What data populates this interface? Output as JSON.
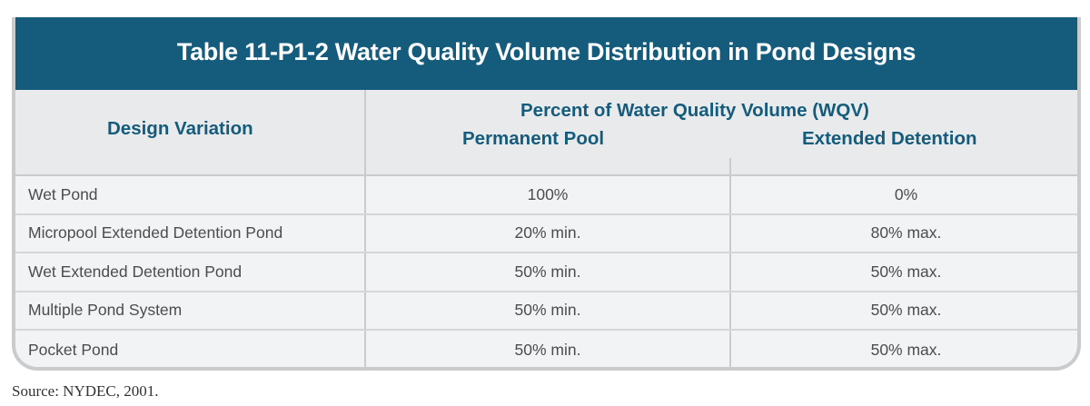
{
  "table": {
    "title": "Table 11-P1-2 Water Quality Volume Distribution in Pond Designs",
    "header": {
      "design_variation": "Design Variation",
      "percent_group": "Percent of Water Quality Volume (WQV)",
      "permanent_pool": "Permanent Pool",
      "extended_detention": "Extended Detention"
    },
    "rows": [
      {
        "design": "Wet Pond",
        "permanent_pool": "100%",
        "extended_detention": "0%"
      },
      {
        "design": "Micropool Extended Detention Pond",
        "permanent_pool": "20% min.",
        "extended_detention": "80% max."
      },
      {
        "design": "Wet Extended Detention Pond",
        "permanent_pool": "50% min.",
        "extended_detention": "50% max."
      },
      {
        "design": "Multiple Pond System",
        "permanent_pool": "50% min.",
        "extended_detention": "50% max."
      },
      {
        "design": "Pocket Pond",
        "permanent_pool": "50% min.",
        "extended_detention": "50% max."
      }
    ]
  },
  "source": "Source: NYDEC, 2001.",
  "colors": {
    "title_bar": "#145b7c",
    "header_text": "#145b7c",
    "table_background": "#f2f3f4",
    "border": "#c9cbcd"
  }
}
